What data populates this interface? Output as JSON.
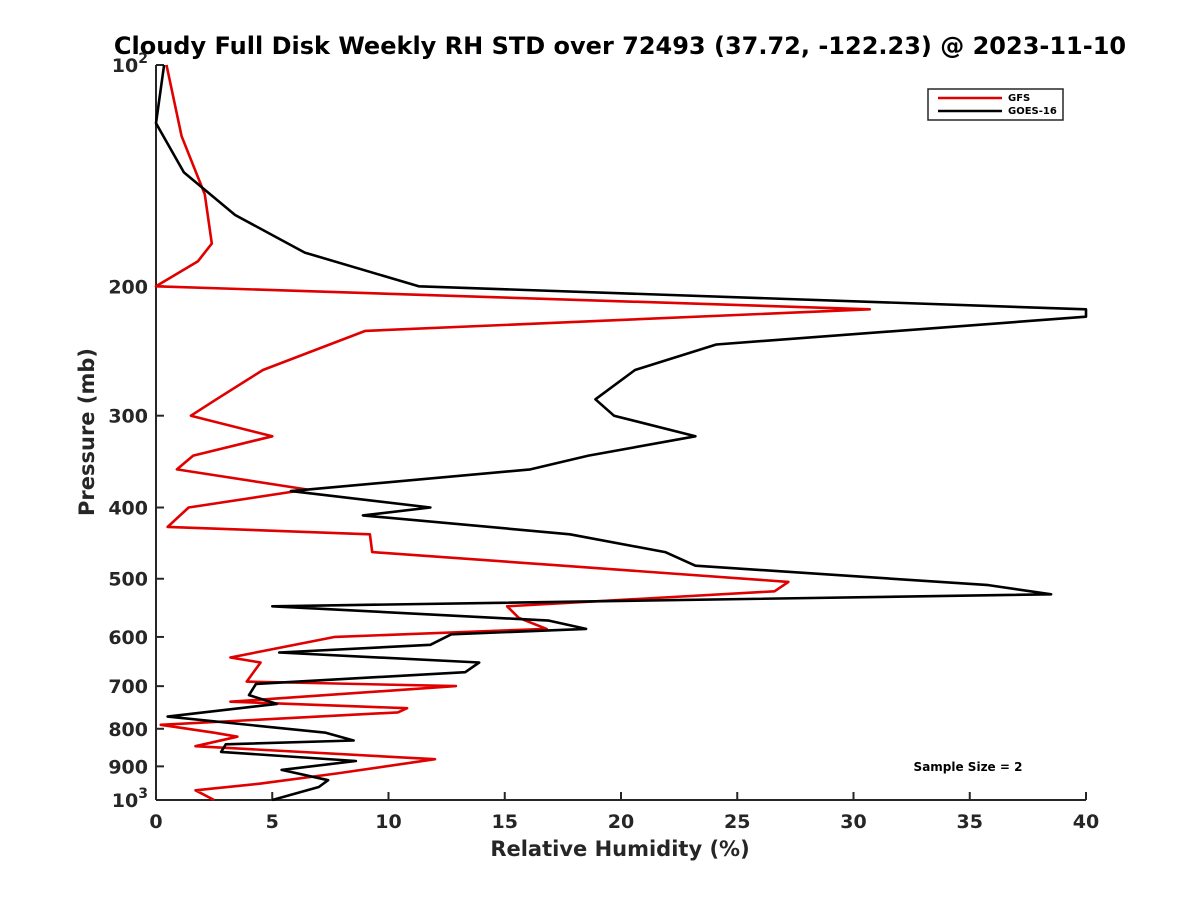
{
  "chart_data": {
    "type": "line",
    "title": "Cloudy Full Disk Weekly RH STD over 72493 (37.72, -122.23) @ 2023-11-10",
    "xlabel": "Relative Humidity (%)",
    "ylabel": "Pressure (mb)",
    "xlim": [
      0,
      40
    ],
    "ylim": [
      100,
      1000
    ],
    "yscale": "log",
    "y_reversed": true,
    "grid": false,
    "legend_position": "top-right",
    "x_ticks": [
      0,
      5,
      10,
      15,
      20,
      25,
      30,
      35,
      40
    ],
    "x_tick_labels": [
      "0",
      "5",
      "10",
      "15",
      "20",
      "25",
      "30",
      "35",
      "40"
    ],
    "y_ticks": [
      100,
      200,
      300,
      400,
      500,
      600,
      700,
      800,
      900,
      1000
    ],
    "y_tick_labels": [
      {
        "base": "10",
        "exp": "2"
      },
      {
        "base": "200",
        "exp": ""
      },
      {
        "base": "300",
        "exp": ""
      },
      {
        "base": "400",
        "exp": ""
      },
      {
        "base": "500",
        "exp": ""
      },
      {
        "base": "600",
        "exp": ""
      },
      {
        "base": "700",
        "exp": ""
      },
      {
        "base": "800",
        "exp": ""
      },
      {
        "base": "900",
        "exp": ""
      },
      {
        "base": "10",
        "exp": "3"
      }
    ],
    "annotation": "Sample Size = 2",
    "series": [
      {
        "name": "GFS",
        "color": "#e00000",
        "points": [
          [
            0.45,
            100
          ],
          [
            1.1,
            125
          ],
          [
            2.1,
            150
          ],
          [
            2.4,
            175
          ],
          [
            1.8,
            185
          ],
          [
            0.0,
            200
          ],
          [
            30.7,
            215
          ],
          [
            9.0,
            230
          ],
          [
            4.6,
            260
          ],
          [
            2.6,
            285
          ],
          [
            1.5,
            300
          ],
          [
            5.0,
            320
          ],
          [
            1.6,
            340
          ],
          [
            0.9,
            355
          ],
          [
            6.5,
            378
          ],
          [
            1.4,
            400
          ],
          [
            0.5,
            425
          ],
          [
            9.2,
            435
          ],
          [
            9.3,
            460
          ],
          [
            17.5,
            480
          ],
          [
            27.2,
            505
          ],
          [
            26.6,
            520
          ],
          [
            15.1,
            545
          ],
          [
            15.6,
            565
          ],
          [
            16.8,
            585
          ],
          [
            7.7,
            600
          ],
          [
            3.2,
            640
          ],
          [
            4.5,
            650
          ],
          [
            3.9,
            690
          ],
          [
            12.9,
            700
          ],
          [
            3.2,
            735
          ],
          [
            10.8,
            750
          ],
          [
            10.4,
            760
          ],
          [
            0.2,
            790
          ],
          [
            2.5,
            810
          ],
          [
            3.5,
            820
          ],
          [
            1.7,
            845
          ],
          [
            12.0,
            880
          ],
          [
            7.8,
            920
          ],
          [
            4.5,
            950
          ],
          [
            1.7,
            970
          ],
          [
            2.5,
            1000
          ]
        ]
      },
      {
        "name": "GOES-16",
        "color": "#000000",
        "points": [
          [
            0.35,
            100
          ],
          [
            0.0,
            120
          ],
          [
            1.2,
            140
          ],
          [
            3.4,
            160
          ],
          [
            6.4,
            180
          ],
          [
            11.3,
            200
          ],
          [
            40.0,
            215
          ],
          [
            40.0,
            220
          ],
          [
            24.1,
            240
          ],
          [
            20.6,
            260
          ],
          [
            18.9,
            285
          ],
          [
            19.7,
            300
          ],
          [
            23.2,
            320
          ],
          [
            18.6,
            340
          ],
          [
            16.1,
            355
          ],
          [
            5.8,
            380
          ],
          [
            11.8,
            400
          ],
          [
            8.9,
            410
          ],
          [
            17.8,
            435
          ],
          [
            21.9,
            460
          ],
          [
            23.2,
            480
          ],
          [
            35.8,
            510
          ],
          [
            38.5,
            525
          ],
          [
            5.0,
            545
          ],
          [
            16.9,
            570
          ],
          [
            18.5,
            585
          ],
          [
            12.7,
            595
          ],
          [
            11.8,
            615
          ],
          [
            5.3,
            630
          ],
          [
            13.9,
            650
          ],
          [
            13.3,
            670
          ],
          [
            4.3,
            695
          ],
          [
            4.0,
            720
          ],
          [
            5.2,
            740
          ],
          [
            0.5,
            770
          ],
          [
            7.3,
            810
          ],
          [
            8.5,
            830
          ],
          [
            3.0,
            840
          ],
          [
            2.8,
            860
          ],
          [
            8.6,
            885
          ],
          [
            5.4,
            910
          ],
          [
            7.4,
            940
          ],
          [
            7.0,
            960
          ],
          [
            5.0,
            1000
          ]
        ]
      }
    ]
  }
}
